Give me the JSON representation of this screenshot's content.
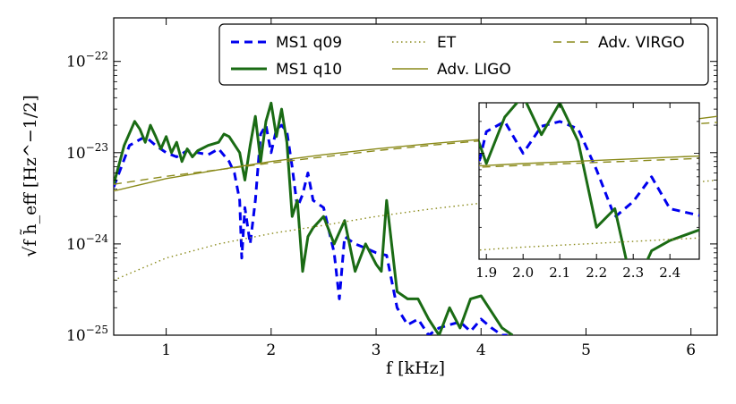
{
  "chart_data": {
    "type": "line",
    "title": "",
    "xlabel": "f [kHz]",
    "ylabel": "√f h̃_eff [Hz^−1/2]",
    "xscale": "linear",
    "yscale": "log",
    "xlim": [
      0.5,
      6.25
    ],
    "ylim": [
      1e-25,
      3e-22
    ],
    "xticks": [
      1,
      2,
      3,
      4,
      5,
      6
    ],
    "xtick_labels": [
      "1",
      "2",
      "3",
      "4",
      "5",
      "6"
    ],
    "yticks": [
      1e-25,
      1e-24,
      1e-23,
      1e-22
    ],
    "ytick_labels": [
      "10−25",
      "10−24",
      "10−23",
      "10−22"
    ],
    "legend_position": "top-right",
    "legend": [
      {
        "label": "MS1 q09",
        "color": "#0000ee",
        "style": "dashed"
      },
      {
        "label": "MS1 q10",
        "color": "#1a6b14",
        "style": "solid"
      },
      {
        "label": "ET",
        "color": "#8a8a1a",
        "style": "dotted"
      },
      {
        "label": "Adv. LIGO",
        "color": "#8a8a1a",
        "style": "solid"
      },
      {
        "label": "Adv. VIRGO",
        "color": "#8a8a1a",
        "style": "dashed"
      }
    ],
    "series": [
      {
        "name": "MS1 q09",
        "x": [
          0.5,
          0.65,
          0.8,
          0.9,
          1.0,
          1.1,
          1.2,
          1.3,
          1.4,
          1.5,
          1.6,
          1.65,
          1.7,
          1.72,
          1.75,
          1.8,
          1.85,
          1.9,
          1.95,
          2.0,
          2.05,
          2.1,
          2.15,
          2.2,
          2.25,
          2.3,
          2.35,
          2.4,
          2.5,
          2.6,
          2.65,
          2.7,
          2.8,
          2.9,
          3.0,
          3.1,
          3.2,
          3.3,
          3.4,
          3.5,
          3.6,
          3.7,
          3.8,
          3.9,
          4.0,
          4.1,
          4.2,
          4.25
        ],
        "y": [
          4.2e-24,
          1.2e-23,
          1.5e-23,
          1.2e-23,
          1e-23,
          9e-24,
          1.05e-23,
          1e-23,
          9.5e-24,
          1.1e-23,
          8e-24,
          6e-24,
          3e-24,
          7e-25,
          2.5e-24,
          1e-24,
          3e-24,
          1.6e-23,
          2e-23,
          1e-23,
          1.8e-23,
          2e-23,
          1.7e-23,
          7e-24,
          2.5e-24,
          3.5e-24,
          6e-24,
          3e-24,
          2.5e-24,
          8e-25,
          2.5e-25,
          1.2e-24,
          1e-24,
          9e-25,
          8e-25,
          7.5e-25,
          2e-25,
          1.3e-25,
          1.5e-25,
          1e-25,
          1.2e-25,
          1.3e-25,
          1.4e-25,
          1.1e-25,
          1.5e-25,
          1.2e-25,
          1e-25,
          1e-25
        ]
      },
      {
        "name": "MS1 q10",
        "x": [
          0.5,
          0.6,
          0.7,
          0.75,
          0.8,
          0.85,
          0.9,
          0.95,
          1.0,
          1.05,
          1.1,
          1.15,
          1.2,
          1.25,
          1.3,
          1.4,
          1.5,
          1.55,
          1.6,
          1.7,
          1.75,
          1.8,
          1.85,
          1.9,
          1.95,
          2.0,
          2.05,
          2.1,
          2.15,
          2.2,
          2.25,
          2.3,
          2.35,
          2.4,
          2.5,
          2.6,
          2.7,
          2.8,
          2.9,
          3.0,
          3.05,
          3.1,
          3.2,
          3.3,
          3.4,
          3.5,
          3.6,
          3.7,
          3.8,
          3.9,
          4.0,
          4.1,
          4.2,
          4.3
        ],
        "y": [
          4.5e-24,
          1.2e-23,
          2.2e-23,
          1.8e-23,
          1.3e-23,
          2e-23,
          1.5e-23,
          1.1e-23,
          1.5e-23,
          1e-23,
          1.3e-23,
          8e-24,
          1.1e-23,
          9e-24,
          1.05e-23,
          1.2e-23,
          1.3e-23,
          1.6e-23,
          1.5e-23,
          1e-23,
          5e-24,
          1.2e-23,
          2.5e-23,
          8e-24,
          2.2e-23,
          3.5e-23,
          1.5e-23,
          3e-23,
          1.3e-23,
          2e-24,
          3e-24,
          5e-25,
          1.2e-24,
          1.5e-24,
          2e-24,
          1e-24,
          1.8e-24,
          5e-25,
          1e-24,
          6e-25,
          5e-25,
          3e-24,
          3e-25,
          2.5e-25,
          2.5e-25,
          1.5e-25,
          1e-25,
          2e-25,
          1.2e-25,
          2.5e-25,
          2.7e-25,
          1.8e-25,
          1.2e-25,
          1e-25
        ]
      },
      {
        "name": "ET",
        "x": [
          0.5,
          1,
          1.5,
          2,
          2.5,
          3,
          3.5,
          4,
          4.5,
          5,
          5.5,
          6,
          6.25
        ],
        "y": [
          4e-25,
          7e-25,
          1e-24,
          1.3e-24,
          1.6e-24,
          2e-24,
          2.4e-24,
          2.8e-24,
          3.2e-24,
          3.7e-24,
          4.2e-24,
          4.7e-24,
          5e-24
        ]
      },
      {
        "name": "Adv. LIGO",
        "x": [
          0.5,
          1,
          1.5,
          2,
          2.5,
          3,
          3.5,
          4,
          4.5,
          5,
          5.5,
          6,
          6.25
        ],
        "y": [
          3.8e-24,
          5.2e-24,
          6.5e-24,
          8e-24,
          9.5e-24,
          1.1e-23,
          1.25e-23,
          1.4e-23,
          1.6e-23,
          1.8e-23,
          2e-23,
          2.3e-23,
          2.5e-23
        ]
      },
      {
        "name": "Adv. VIRGO",
        "x": [
          0.5,
          1,
          1.5,
          2,
          2.5,
          3,
          3.5,
          4,
          4.5,
          5,
          5.5,
          6,
          6.25
        ],
        "y": [
          4.5e-24,
          5.5e-24,
          6.5e-24,
          7.7e-24,
          9e-24,
          1.05e-23,
          1.2e-23,
          1.35e-23,
          1.5e-23,
          1.65e-23,
          1.85e-23,
          2.05e-23,
          2.15e-23
        ]
      }
    ],
    "inset": {
      "xlim": [
        1.88,
        2.48
      ],
      "ylim": [
        1e-24,
        3e-23
      ],
      "xticks": [
        1.9,
        2.0,
        2.1,
        2.2,
        2.3,
        2.4
      ],
      "xtick_labels": [
        "1.9",
        "2.0",
        "2.1",
        "2.2",
        "2.3",
        "2.4"
      ]
    }
  }
}
